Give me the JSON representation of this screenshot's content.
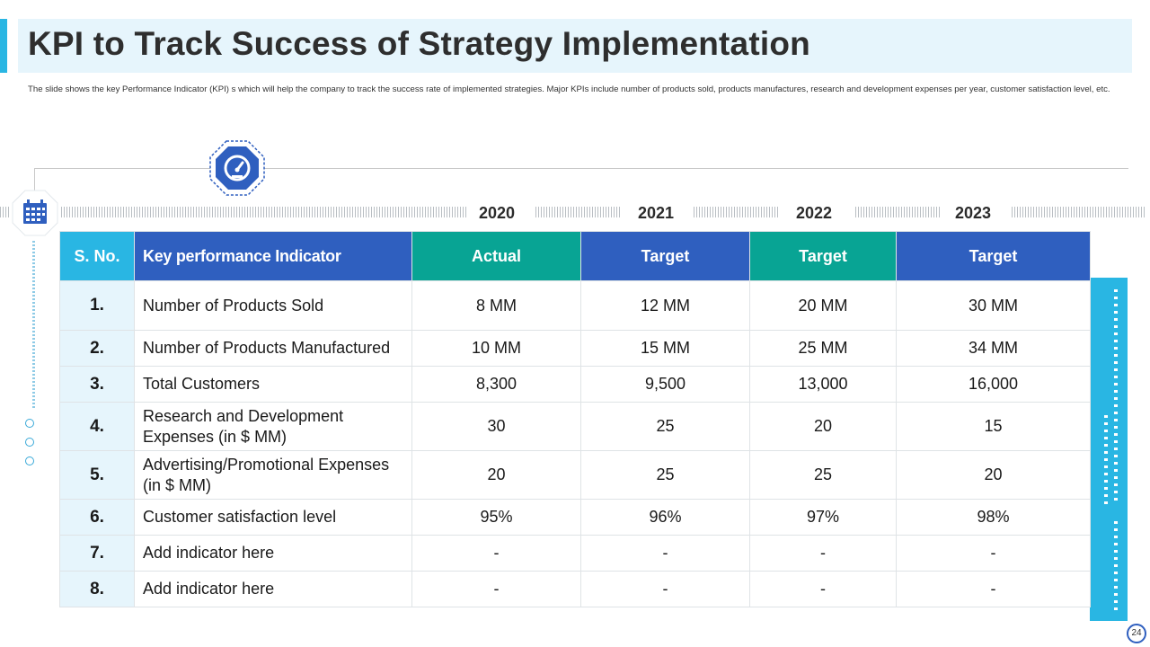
{
  "header": {
    "title": "KPI to Track Success of Strategy Implementation",
    "subtitle": "The slide shows the key Performance Indicator (KPI) s which will help the company to track the success rate of implemented strategies. Major KPIs include number of products sold, products manufactures, research and development expenses per year, customer satisfaction level, etc."
  },
  "icons": {
    "badge": "speedometer-icon",
    "calendar": "calendar-icon"
  },
  "years": [
    "2020",
    "2021",
    "2022",
    "2023"
  ],
  "table": {
    "headers": [
      "S. No.",
      "Key performance Indicator",
      "Actual",
      "Target",
      "Target",
      "Target"
    ],
    "rows": [
      {
        "sno": "1.",
        "name": "Number of Products Sold",
        "values": [
          "8 MM",
          "12 MM",
          "20 MM",
          "30 MM"
        ]
      },
      {
        "sno": "2.",
        "name": "Number of Products Manufactured",
        "values": [
          "10 MM",
          "15 MM",
          "25 MM",
          "34 MM"
        ]
      },
      {
        "sno": "3.",
        "name": "Total Customers",
        "values": [
          "8,300",
          "9,500",
          "13,000",
          "16,000"
        ]
      },
      {
        "sno": "4.",
        "name": "Research and Development Expenses (in $ MM)",
        "values": [
          "30",
          "25",
          "20",
          "15"
        ]
      },
      {
        "sno": "5.",
        "name": "Advertising/Promotional Expenses (in $ MM)",
        "values": [
          "20",
          "25",
          "25",
          "20"
        ]
      },
      {
        "sno": "6.",
        "name": "Customer satisfaction level",
        "values": [
          "95%",
          "96%",
          "97%",
          "98%"
        ]
      },
      {
        "sno": "7.",
        "name": "Add indicator here",
        "values": [
          "-",
          "-",
          "-",
          "-"
        ]
      },
      {
        "sno": "8.",
        "name": "Add indicator here",
        "values": [
          "-",
          "-",
          "-",
          "-"
        ]
      }
    ]
  },
  "page_number": "24",
  "colors": {
    "accent": "#29b6e3",
    "blue": "#2f5fbf",
    "teal": "#08a494",
    "light": "#e6f5fc"
  }
}
